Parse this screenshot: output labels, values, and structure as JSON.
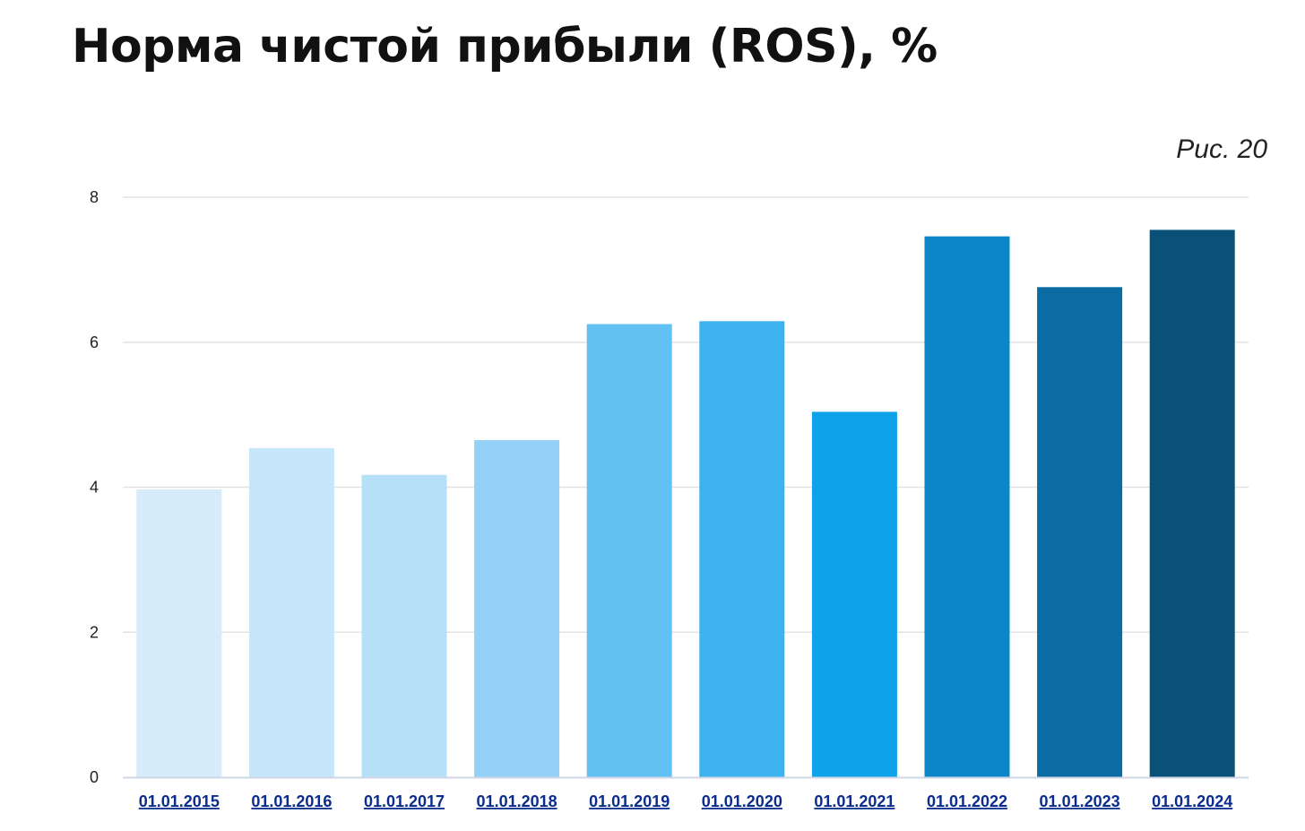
{
  "chart_data": {
    "type": "bar",
    "title": "Норма чистой прибыли (ROS), %",
    "figure_label": "Рис. 20",
    "xlabel": "",
    "ylabel": "",
    "categories": [
      "01.01.2015",
      "01.01.2016",
      "01.01.2017",
      "01.01.2018",
      "01.01.2019",
      "01.01.2020",
      "01.01.2021",
      "01.01.2022",
      "01.01.2023",
      "01.01.2024"
    ],
    "values": [
      3.97,
      4.54,
      4.17,
      4.65,
      6.25,
      6.29,
      5.04,
      7.46,
      6.76,
      7.55
    ],
    "colors": [
      "#d6ecfb",
      "#c6e6f9",
      "#b6e0f8",
      "#93d2f6",
      "#63c0f2",
      "#3eb2ef",
      "#0ea2ea",
      "#0b87c9",
      "#0a6ca3",
      "#0a5179"
    ],
    "ylim": [
      0,
      8
    ],
    "yticks": [
      "0",
      "2",
      "4",
      "6",
      "8"
    ],
    "grid": true
  }
}
